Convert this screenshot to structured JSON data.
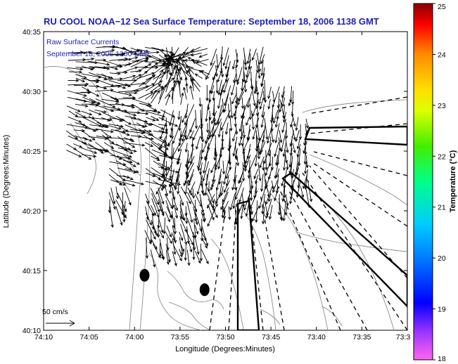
{
  "chart_data": {
    "type": "vector-field-map",
    "title": "RU COOL  NOAA−12  Sea Surface Temperature:  September 18, 2006 1138 GMT",
    "annotation_lines": [
      "Raw Surface Currents",
      "September 18, 2006 1200 GMT"
    ],
    "xlabel": "Longitude (Degrees:Minutes)",
    "ylabel": "Latitude (Degrees:Minutes)",
    "x_ticks": [
      "74:10",
      "74:05",
      "74:00",
      "73:55",
      "73:50",
      "73:45",
      "73:40",
      "73:35",
      "73:3"
    ],
    "y_ticks": [
      "40:10",
      "40:15",
      "40:20",
      "40:25",
      "40:30",
      "40:35"
    ],
    "xlim": [
      "74:10",
      "73:30"
    ],
    "ylim": [
      "40:10",
      "40:35"
    ],
    "scale_label": "50 cm/s",
    "scale_speed_cm_s": 50,
    "grid": false,
    "colorbar": {
      "label": "Temperature (°C)",
      "ticks": [
        "18",
        "19",
        "20",
        "21",
        "22",
        "23",
        "24",
        "25"
      ],
      "min": 18,
      "max": 25
    },
    "stations": [
      {
        "lon": "73:58.9",
        "lat": "40:14.6"
      },
      {
        "lon": "73:52.3",
        "lat": "40:13.4"
      }
    ]
  },
  "colors": {
    "vectors": "#000000",
    "title": "#1f1fb4",
    "annotation": "#1f1fb4",
    "land_outline": "#808080",
    "background": "#ffffff"
  }
}
